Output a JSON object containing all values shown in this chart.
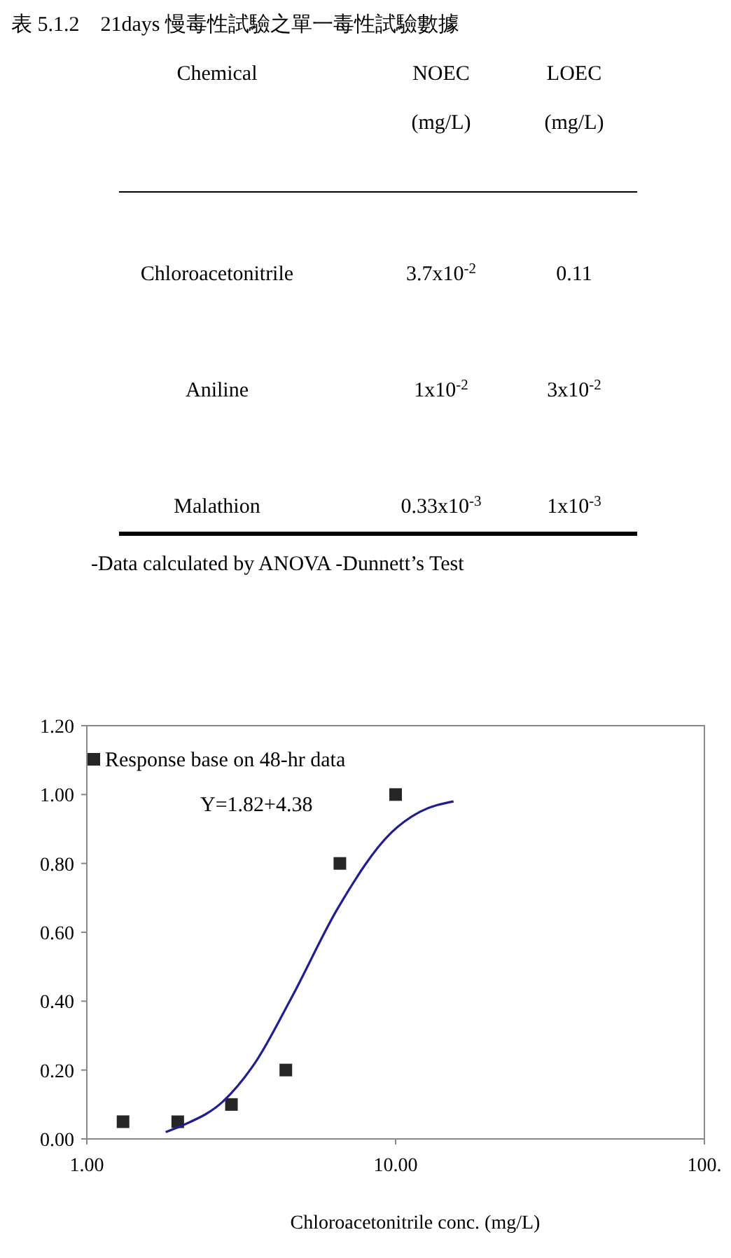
{
  "chart_data": [
    {
      "type": "other",
      "title": "表 5.1.2　21days 慢毒性試驗之單一毒性試驗數據",
      "categories": [
        "Chemical",
        "NOEC\n(mg/L)",
        "LOEC\n(mg/L)"
      ],
      "y_categories": [
        "Chloroacetonitrile",
        "Aniline",
        "Malathion"
      ],
      "cell_labels": [
        [
          "3.7x10$^{-2}$",
          "0.11"
        ],
        [
          "1x10$^{-2}$",
          "3x10$^{-2}$"
        ],
        [
          "0.33x10$^{-3}$",
          "1x10$^{-3}$"
        ]
      ],
      "annotations": [
        "-Data calculated by ANOVA -Dunnett’s Test"
      ]
    },
    {
      "type": "scatter",
      "xlabel": "Chloroacetonitrile conc. (mg/L)",
      "log": "x",
      "xlim": [
        1,
        100
      ],
      "xticks": [
        {
          "value": 1,
          "label": "1.00"
        },
        {
          "value": 10,
          "label": "10.00"
        },
        {
          "value": 100,
          "label": "100."
        }
      ],
      "ylim": [
        0,
        1.2
      ],
      "yticks": [
        {
          "value": 0,
          "label": "0.00"
        },
        {
          "value": 0.2,
          "label": "0.20"
        },
        {
          "value": 0.4,
          "label": "0.40"
        },
        {
          "value": 0.6,
          "label": "0.60"
        },
        {
          "value": 0.8,
          "label": "0.80"
        },
        {
          "value": 1,
          "label": "1.00"
        },
        {
          "value": 1.2,
          "label": "1.20"
        }
      ],
      "grid": false,
      "legend": "top left",
      "annotations": [
        "Y=1.82+4.38"
      ],
      "series": [
        {
          "name": "Response base on 48-hr data",
          "type": "scatter",
          "marker": "square",
          "color": "#262626",
          "x": [
            1.31,
            1.97,
            2.94,
            4.41,
            6.6,
            10
          ],
          "values": [
            0.05,
            0.05,
            0.1,
            0.2,
            0.8,
            1.0
          ]
        },
        {
          "type": "line",
          "color": "#1f1f8f",
          "x": [
            1.8,
            2.05,
            2.77,
            3.5,
            4.6,
            6.5,
            9.7,
            12,
            15.4
          ],
          "values": [
            0.02,
            0.04,
            0.11,
            0.22,
            0.41,
            0.67,
            0.89,
            0.95,
            0.98
          ]
        }
      ]
    }
  ]
}
